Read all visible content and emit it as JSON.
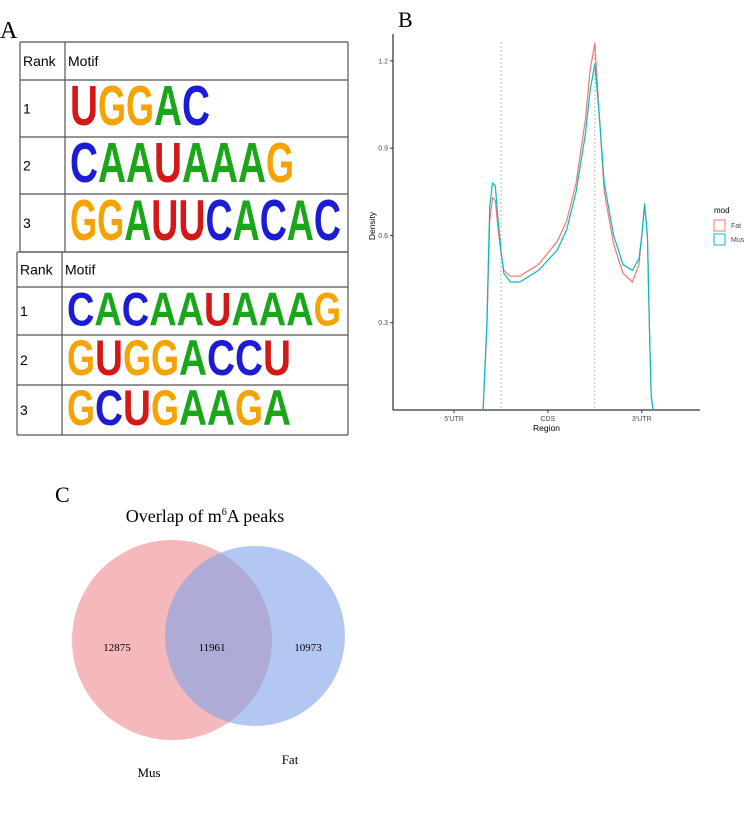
{
  "panel_a": {
    "letter": "A",
    "letter_colors": {
      "A": "#19a619",
      "C": "#1c1cd6",
      "G": "#f5a300",
      "U": "#d41818"
    },
    "tables": [
      {
        "header": [
          "Rank",
          "Motif"
        ],
        "rows": [
          [
            "1",
            "UGGAC"
          ],
          [
            "2",
            "CAAUAAAG"
          ],
          [
            "3",
            "GGAUUCACAC"
          ]
        ]
      },
      {
        "header": [
          "Rank",
          "Motif"
        ],
        "rows": [
          [
            "1",
            "CACAAUAAAG"
          ],
          [
            "2",
            "GUGGACCU"
          ],
          [
            "3",
            "GCUGAAGA"
          ]
        ]
      }
    ]
  },
  "panel_b": {
    "letter": "B",
    "chart_data": {
      "type": "line",
      "x_label": "Region",
      "y_label": "Density",
      "x": [
        0.81,
        0.85,
        0.88,
        0.91,
        0.94,
        0.97,
        1.0,
        1.03,
        1.1,
        1.2,
        1.4,
        1.6,
        1.7,
        1.8,
        1.9,
        1.95,
        2.0,
        2.05,
        2.1,
        2.2,
        2.3,
        2.4,
        2.47,
        2.5,
        2.53,
        2.56,
        2.58,
        2.6,
        2.62
      ],
      "series": [
        {
          "name": "Fat",
          "color": "#F8766D",
          "values": [
            0,
            0.28,
            0.65,
            0.73,
            0.72,
            0.62,
            0.54,
            0.48,
            0.46,
            0.46,
            0.5,
            0.58,
            0.65,
            0.78,
            1.0,
            1.17,
            1.26,
            1.0,
            0.75,
            0.57,
            0.47,
            0.44,
            0.5,
            0.6,
            0.7,
            0.6,
            0.3,
            0.05,
            0
          ]
        },
        {
          "name": "Mus",
          "color": "#00BFC4",
          "values": [
            0,
            0.3,
            0.7,
            0.78,
            0.77,
            0.65,
            0.55,
            0.47,
            0.44,
            0.44,
            0.48,
            0.55,
            0.62,
            0.75,
            0.95,
            1.1,
            1.19,
            1.0,
            0.78,
            0.6,
            0.5,
            0.48,
            0.52,
            0.6,
            0.71,
            0.6,
            0.3,
            0.05,
            0
          ]
        }
      ],
      "xlim": [
        -0.15,
        3.12
      ],
      "xticks": [
        {
          "value": 0.5,
          "label": "5'UTR"
        },
        {
          "value": 1.5,
          "label": "CDS"
        },
        {
          "value": 2.5,
          "label": "3'UTR"
        }
      ],
      "vlines": [
        1,
        2
      ],
      "ylim": [
        0,
        1.265
      ],
      "yticks": [
        0.3,
        0.6,
        0.9,
        1.2
      ],
      "legend_title": "mod",
      "legend": "right"
    }
  },
  "panel_c": {
    "letter": "C",
    "title_prefix": "Overlap of m",
    "title_sup": "6",
    "title_suffix": "A peaks",
    "sets": [
      {
        "name": "Mus",
        "only": 12875,
        "color": "#f08a8e"
      },
      {
        "name": "Fat",
        "only": 10973,
        "color": "#7fa3ea"
      }
    ],
    "overlap": 11961
  }
}
